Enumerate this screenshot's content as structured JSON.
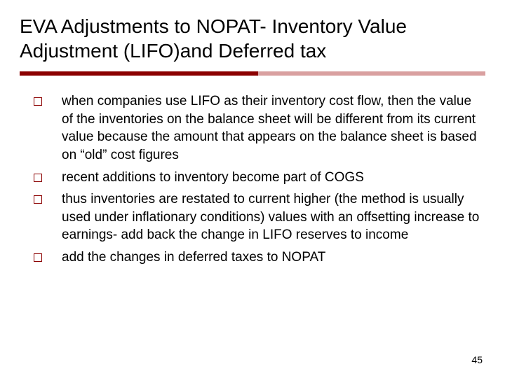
{
  "slide": {
    "title": "EVA Adjustments to NOPAT- Inventory Value Adjustment (LIFO)and Deferred tax",
    "bullets": [
      "when companies use LIFO as their inventory cost flow, then the value of the inventories on the balance sheet will be different from its current value because the amount that appears on the balance sheet is based on “old” cost figures",
      "recent additions to inventory become part of COGS",
      "thus inventories are restated to current higher (the method is usually used under inflationary conditions) values with an offsetting increase to earnings- add back the change in LIFO reserves to income",
      "add the changes in deferred taxes to NOPAT"
    ],
    "page_number": "45",
    "style": {
      "background_color": "#ffffff",
      "title_fontsize": 28,
      "title_color": "#000000",
      "bullet_fontsize": 19,
      "bullet_color": "#000000",
      "bullet_marker_border": "#8b0000",
      "divider_dark_color": "#8b0000",
      "divider_light_color": "#d9a0a0",
      "divider_dark_width": 340,
      "divider_total_width": 664,
      "divider_height": 6,
      "font_family": "Verdana",
      "page_number_fontsize": 14
    }
  }
}
